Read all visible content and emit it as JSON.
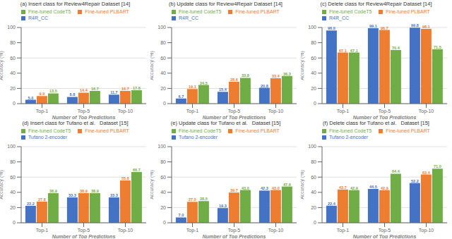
{
  "chart_data": [
    {
      "type": "bar",
      "title": "(a) Insert class for Review4Repair Dataset [14]",
      "xlabel": "Number of Top Predictions",
      "ylabel": "Accuracy (%)",
      "categories": [
        "Top-1",
        "Top-5",
        "Top-10"
      ],
      "series": [
        {
          "name": "R4R_CC",
          "color": "#4472C4",
          "values": [
            5.0,
            8.8,
            11.7
          ],
          "value_labels": [
            "5.0",
            "8.8",
            "11.7"
          ]
        },
        {
          "name": "Fine-tuned PLBART",
          "color": "#ED7D31",
          "values": [
            9.9,
            14.4,
            16.7
          ],
          "value_labels": [
            "9.9",
            "14.4",
            "16.7"
          ]
        },
        {
          "name": "Fine-tuned CodeT5",
          "color": "#70AD47",
          "values": [
            13.5,
            16.7,
            17.6
          ],
          "value_labels": [
            "13.5",
            "16.7",
            "17.6"
          ]
        }
      ],
      "ylim": [
        0,
        100
      ],
      "yticks": [
        0,
        20,
        40,
        60,
        80,
        100
      ],
      "grid": true,
      "legend": "upper left",
      "data_labels": true
    },
    {
      "type": "bar",
      "title": "(b) Update class for Review4Repair Dataset [14]",
      "xlabel": "Number of Top Predictions",
      "ylabel": "Accuracy (%)",
      "categories": [
        "Top-1",
        "Top-5",
        "Top-10"
      ],
      "series": [
        {
          "name": "R4R_CC",
          "color": "#4472C4",
          "values": [
            6.7,
            15.4,
            20.8
          ],
          "value_labels": [
            "6.7",
            "15.4",
            "20.8"
          ]
        },
        {
          "name": "Fine-tuned PLBART",
          "color": "#ED7D31",
          "values": [
            19.1,
            28.6,
            33.4
          ],
          "value_labels": [
            "19.1",
            "28.6",
            "33.4"
          ]
        },
        {
          "name": "Fine-tuned CodeT5",
          "color": "#70AD47",
          "values": [
            24.5,
            33.8,
            36.3
          ],
          "value_labels": [
            "24.5",
            "33.8",
            "36.3"
          ]
        }
      ],
      "ylim": [
        0,
        100
      ],
      "yticks": [
        0,
        20,
        40,
        60,
        80,
        100
      ],
      "grid": true,
      "legend": "upper left",
      "data_labels": true
    },
    {
      "type": "bar",
      "title": "(c) Delete class for Review4Repair Dataset [14]",
      "xlabel": "Number of Top Predictions",
      "ylabel": "Accuracy (%)",
      "categories": [
        "Top-1",
        "Top-5",
        "Top-10"
      ],
      "series": [
        {
          "name": "R4R_CC",
          "color": "#4472C4",
          "values": [
            96.0,
            99.1,
            99.8
          ],
          "value_labels": [
            "96.0",
            "99.1",
            "99.8"
          ]
        },
        {
          "name": "Fine-tuned PLBART",
          "color": "#ED7D31",
          "values": [
            67.1,
            96.7,
            98.1
          ],
          "value_labels": [
            "67.1",
            "96.7",
            "98.1"
          ]
        },
        {
          "name": "Fine-tuned CodeT5",
          "color": "#70AD47",
          "values": [
            67.1,
            70.4,
            71.5
          ],
          "value_labels": [
            "67.1",
            "70.4",
            "71.5"
          ]
        }
      ],
      "ylim": [
        0,
        100
      ],
      "yticks": [
        0,
        20,
        40,
        60,
        80,
        100
      ],
      "grid": true,
      "legend": "upper left",
      "data_labels": true
    },
    {
      "type": "bar",
      "title": "(d) Insert class for Tufano et al.   Dataset [15]",
      "xlabel": "Number of Top Predictions",
      "ylabel": "Accuracy (%)",
      "categories": [
        "Top-1",
        "Top-5",
        "Top-10"
      ],
      "series": [
        {
          "name": "Tufano 2-encoder",
          "color": "#4472C4",
          "values": [
            22.2,
            33.3,
            33.3
          ],
          "value_labels": [
            "22.2",
            "33.3",
            "33.3"
          ]
        },
        {
          "name": "Fine-tuned PLBART",
          "color": "#ED7D31",
          "values": [
            27.8,
            38.9,
            55.6
          ],
          "value_labels": [
            "27.8",
            "38.9",
            "55.6"
          ]
        },
        {
          "name": "Fine-tuned CodeT5",
          "color": "#70AD47",
          "values": [
            38.9,
            38.9,
            66.7
          ],
          "value_labels": [
            "38.9",
            "38.9",
            "66.7"
          ]
        }
      ],
      "ylim": [
        0,
        100
      ],
      "yticks": [
        0,
        20,
        40,
        60,
        80,
        100
      ],
      "grid": true,
      "legend": "upper left",
      "data_labels": true
    },
    {
      "type": "bar",
      "title": "(e) Update class for Tufano et al.   Dataset [15]",
      "xlabel": "Number of Top Predictions",
      "ylabel": "Accuracy (%)",
      "categories": [
        "Top-1",
        "Top-5",
        "Top-10"
      ],
      "series": [
        {
          "name": "Tufano 2-encoder",
          "color": "#4472C4",
          "values": [
            7.0,
            19.3,
            42.3
          ],
          "value_labels": [
            "7.0",
            "19.3",
            "42.3"
          ]
        },
        {
          "name": "Fine-tuned PLBART",
          "color": "#ED7D31",
          "values": [
            27.5,
            39.7,
            43.0
          ],
          "value_labels": [
            "27.5",
            "39.7",
            "43.0"
          ]
        },
        {
          "name": "Fine-tuned CodeT5",
          "color": "#70AD47",
          "values": [
            28.5,
            43.0,
            47.6
          ],
          "value_labels": [
            "28.5",
            "43.0",
            "47.6"
          ]
        }
      ],
      "ylim": [
        0,
        100
      ],
      "yticks": [
        0,
        20,
        40,
        60,
        80,
        100
      ],
      "grid": true,
      "legend": "upper left",
      "data_labels": true
    },
    {
      "type": "bar",
      "title": "(f) Delete class for Tufano et al.   Dataset [15]",
      "xlabel": "Number of Top Predictions",
      "ylabel": "Accuracy (%)",
      "categories": [
        "Top-1",
        "Top-5",
        "Top-10"
      ],
      "series": [
        {
          "name": "Tufano 2-encoder",
          "color": "#4472C4",
          "values": [
            22.4,
            44.5,
            52.2
          ],
          "value_labels": [
            "22.4",
            "44.5",
            "52.2"
          ]
        },
        {
          "name": "Fine-tuned PLBART",
          "color": "#ED7D31",
          "values": [
            43.7,
            42.9,
            63.4
          ],
          "value_labels": [
            "43.7",
            "42.9",
            "63.4"
          ]
        },
        {
          "name": "Fine-tuned CodeT5",
          "color": "#70AD47",
          "values": [
            42.9,
            64.4,
            71.0
          ],
          "value_labels": [
            "42.9",
            "64.4",
            "71.0"
          ]
        }
      ],
      "ylim": [
        0,
        100
      ],
      "yticks": [
        0,
        20,
        40,
        60,
        80,
        100
      ],
      "grid": true,
      "legend": "upper left",
      "data_labels": true
    }
  ]
}
